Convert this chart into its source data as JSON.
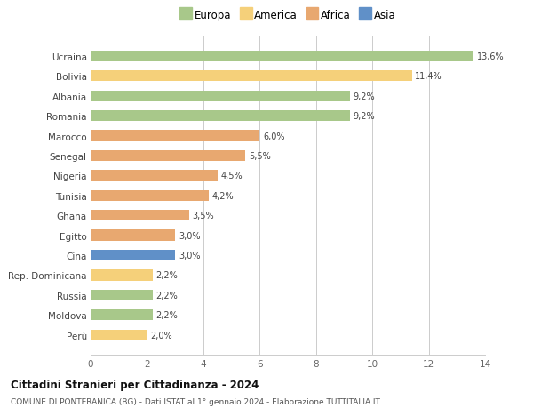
{
  "countries": [
    "Ucraina",
    "Bolivia",
    "Albania",
    "Romania",
    "Marocco",
    "Senegal",
    "Nigeria",
    "Tunisia",
    "Ghana",
    "Egitto",
    "Cina",
    "Rep. Dominicana",
    "Russia",
    "Moldova",
    "Perù"
  ],
  "values": [
    13.6,
    11.4,
    9.2,
    9.2,
    6.0,
    5.5,
    4.5,
    4.2,
    3.5,
    3.0,
    3.0,
    2.2,
    2.2,
    2.2,
    2.0
  ],
  "labels": [
    "13,6%",
    "11,4%",
    "9,2%",
    "9,2%",
    "6,0%",
    "5,5%",
    "4,5%",
    "4,2%",
    "3,5%",
    "3,0%",
    "3,0%",
    "2,2%",
    "2,2%",
    "2,2%",
    "2,0%"
  ],
  "continents": [
    "Europa",
    "America",
    "Europa",
    "Europa",
    "Africa",
    "Africa",
    "Africa",
    "Africa",
    "Africa",
    "Africa",
    "Asia",
    "America",
    "Europa",
    "Europa",
    "America"
  ],
  "continent_colors": {
    "Europa": "#a8c88a",
    "America": "#f5d07a",
    "Africa": "#e8a870",
    "Asia": "#6090c8"
  },
  "legend_order": [
    "Europa",
    "America",
    "Africa",
    "Asia"
  ],
  "title": "Cittadini Stranieri per Cittadinanza - 2024",
  "subtitle": "COMUNE DI PONTERANICA (BG) - Dati ISTAT al 1° gennaio 2024 - Elaborazione TUTTITALIA.IT",
  "xlim": [
    0,
    14
  ],
  "xticks": [
    0,
    2,
    4,
    6,
    8,
    10,
    12,
    14
  ],
  "bg_color": "#ffffff",
  "grid_color": "#cccccc",
  "bar_height": 0.55
}
